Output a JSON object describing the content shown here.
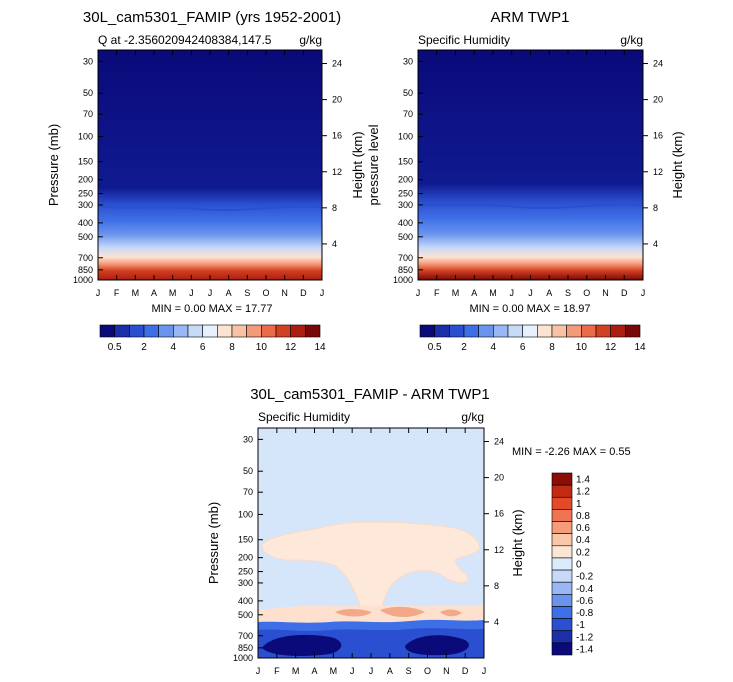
{
  "colors": {
    "positive_scale": [
      "#0a0a7a",
      "#1a2fa8",
      "#2a4fd0",
      "#3f6fe6",
      "#6a93ee",
      "#98b7f4",
      "#c6d9f8",
      "#e8f0fb",
      "#fde3d2",
      "#f9c2a2",
      "#f59a78",
      "#ea6b48",
      "#d23f22",
      "#aa1d10",
      "#7a0808"
    ],
    "diff_scale": [
      "#0a0a7a",
      "#1a2fa8",
      "#2a4fd0",
      "#3f6fe6",
      "#6a93ee",
      "#98b7f4",
      "#c6d9f8",
      "#dcebfb",
      "#fbe6d6",
      "#f9c7a8",
      "#f59c7a",
      "#ef7452",
      "#e24a28",
      "#c22a12",
      "#8c0c06"
    ]
  },
  "chart_data": [
    {
      "type": "heatmap",
      "title": "30L_cam5301_FAMIP (yrs 1952-2001)",
      "left_label": "Q at -2.356020942408384,147.5",
      "right_label": "g/kg",
      "xlabel": "",
      "ylabel": "Pressure (mb)",
      "ylabel_right": "Height (km)",
      "x_ticks": [
        "J",
        "F",
        "M",
        "A",
        "M",
        "J",
        "J",
        "A",
        "S",
        "O",
        "N",
        "D",
        "J"
      ],
      "y_ticks": [
        "30",
        "50",
        "70",
        "100",
        "150",
        "200",
        "250",
        "300",
        "400",
        "500",
        "700",
        "850",
        "1000"
      ],
      "y_ticks_right": [
        "24",
        "20",
        "16",
        "12",
        "8",
        "4"
      ],
      "minmax": "MIN =   0.00 MAX =  17.77",
      "colorbar_labels": [
        "0.5",
        "2",
        "4",
        "6",
        "8",
        "10",
        "12",
        "14"
      ],
      "scale": "log"
    },
    {
      "type": "heatmap",
      "title": "ARM TWP1",
      "left_label": "Specific Humidity",
      "right_label": "g/kg",
      "xlabel": "",
      "ylabel": "pressure level",
      "ylabel_right": "Height (km)",
      "x_ticks": [
        "J",
        "F",
        "M",
        "A",
        "M",
        "J",
        "J",
        "A",
        "S",
        "O",
        "N",
        "D",
        "J"
      ],
      "y_ticks": [
        "30",
        "50",
        "70",
        "100",
        "150",
        "200",
        "250",
        "300",
        "400",
        "500",
        "700",
        "850",
        "1000"
      ],
      "y_ticks_right": [
        "24",
        "20",
        "16",
        "12",
        "8",
        "4"
      ],
      "minmax": "MIN =   0.00 MAX =  18.97",
      "colorbar_labels": [
        "0.5",
        "2",
        "4",
        "6",
        "8",
        "10",
        "12",
        "14"
      ],
      "scale": "log"
    },
    {
      "type": "heatmap",
      "title": "30L_cam5301_FAMIP - ARM TWP1",
      "left_label": "Specific Humidity",
      "right_label": "g/kg",
      "xlabel": "",
      "ylabel": "Pressure (mb)",
      "ylabel_right": "Height (km)",
      "x_ticks": [
        "J",
        "F",
        "M",
        "A",
        "M",
        "J",
        "J",
        "A",
        "S",
        "O",
        "N",
        "D",
        "J"
      ],
      "y_ticks": [
        "30",
        "50",
        "70",
        "100",
        "150",
        "200",
        "250",
        "300",
        "400",
        "500",
        "700",
        "850",
        "1000"
      ],
      "y_ticks_right": [
        "24",
        "20",
        "16",
        "12",
        "8",
        "4"
      ],
      "minmax": "MIN =  -2.26 MAX =   0.55",
      "colorbar_labels": [
        "1.4",
        "1.2",
        "1",
        "0.8",
        "0.6",
        "0.4",
        "0.2",
        "0",
        "-0.2",
        "-0.4",
        "-0.6",
        "-0.8",
        "-1",
        "-1.2",
        "-1.4"
      ],
      "scale": "log"
    }
  ]
}
